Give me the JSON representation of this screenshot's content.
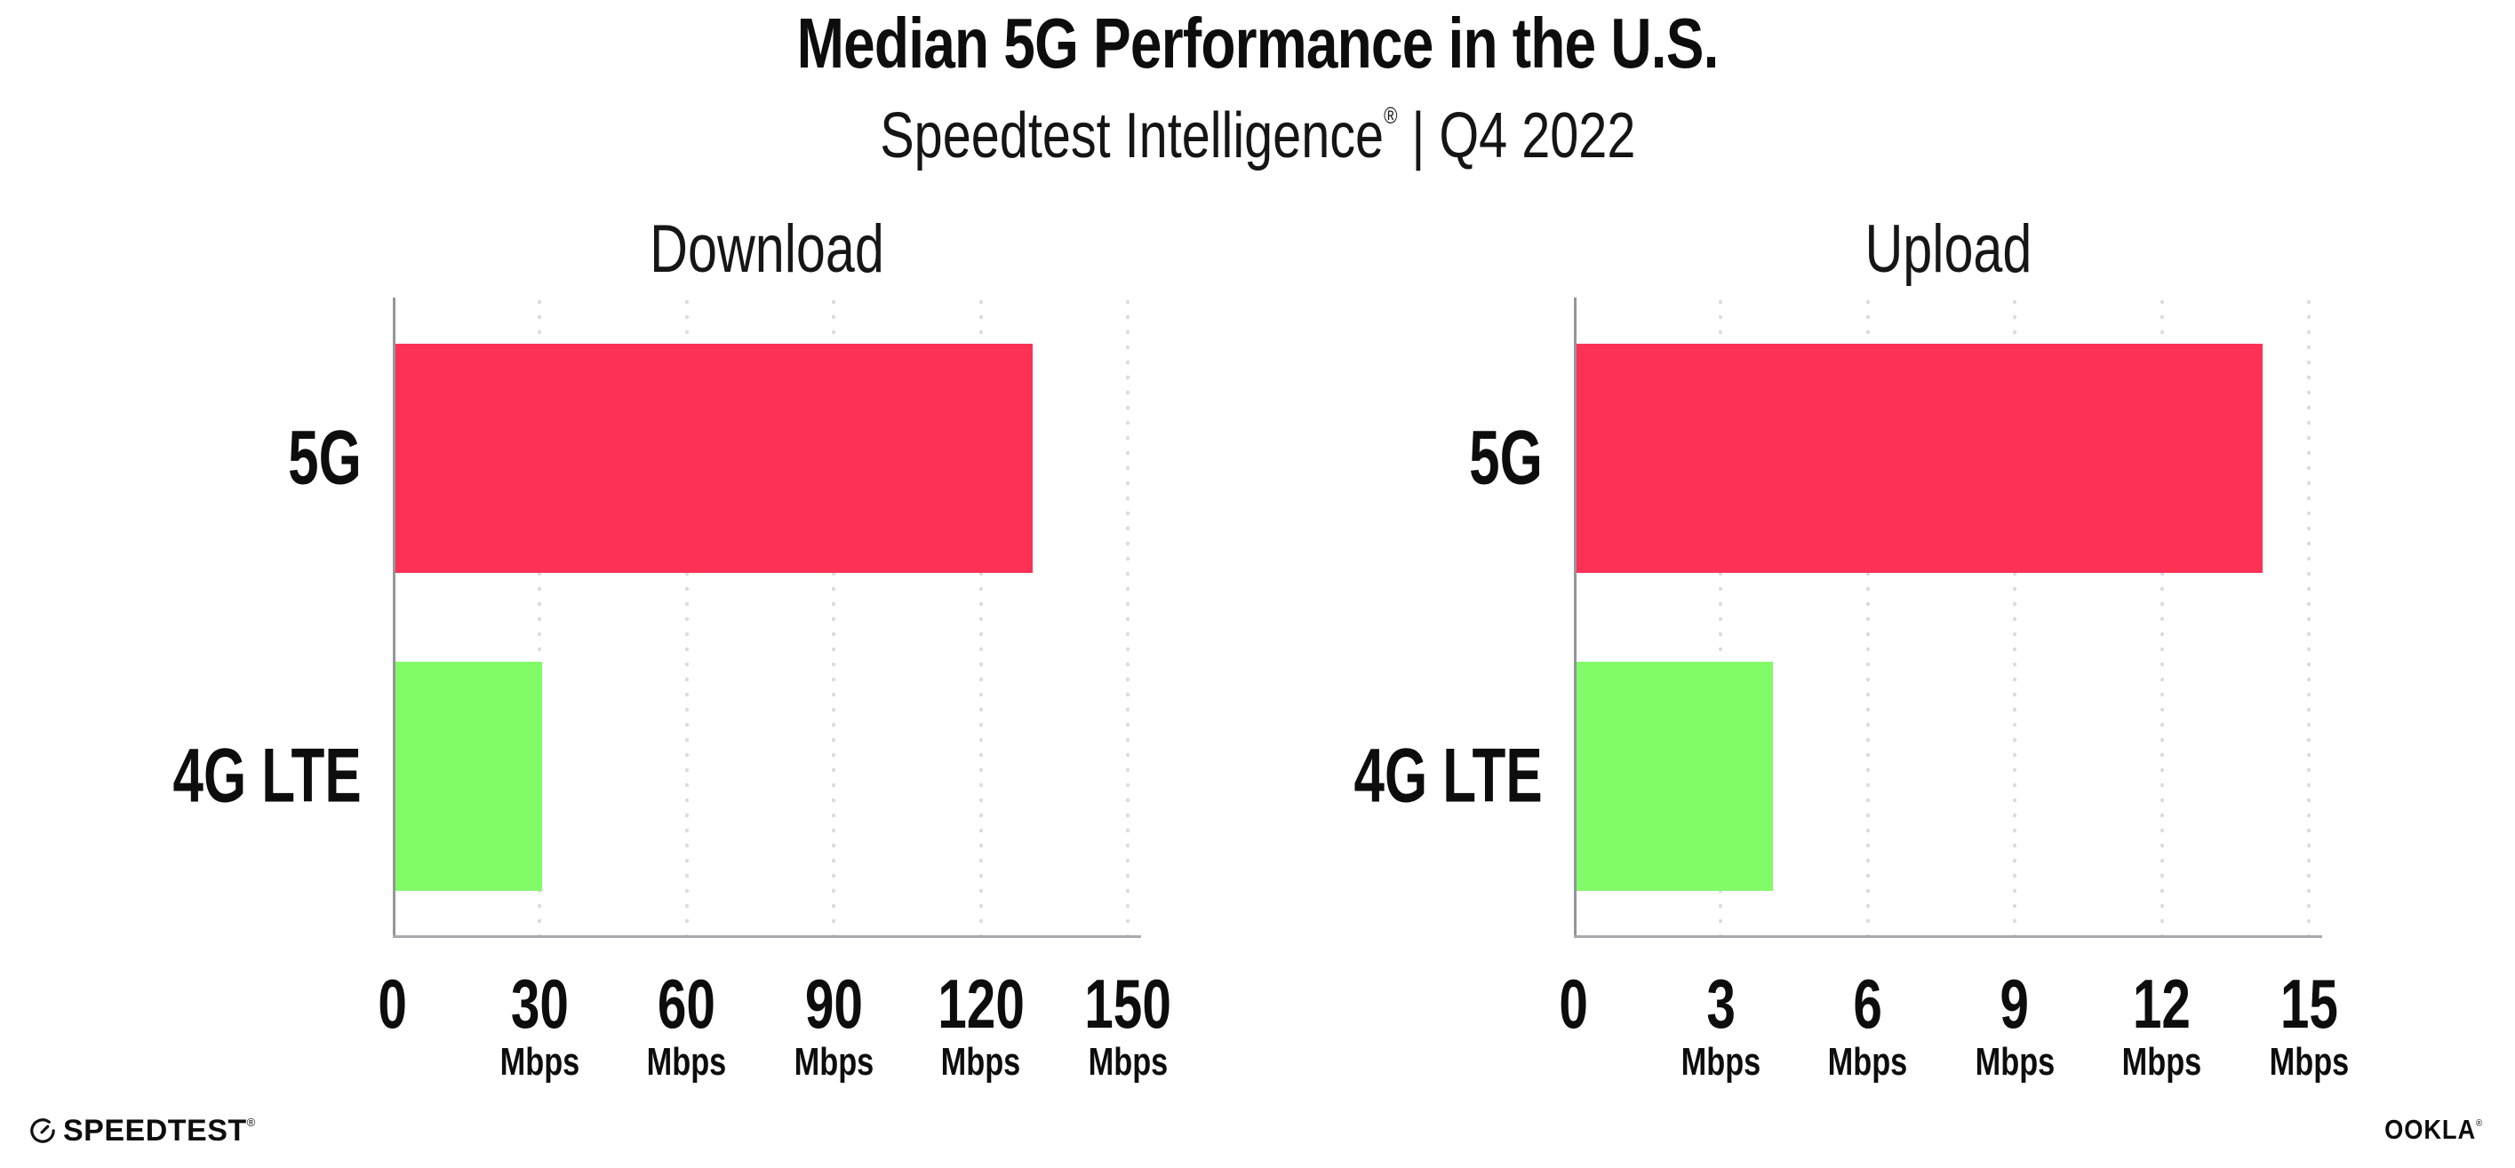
{
  "header": {
    "title": "Median 5G Performance in the U.S.",
    "subtitle_brand": "Speedtest Intelligence",
    "subtitle_reg": "®",
    "subtitle_rest": " | Q4 2022"
  },
  "colors": {
    "bar_5g": "#fd3155",
    "bar_4g_lte": "#82fb68",
    "x_axis": "#a8a8ae",
    "y_axis": "#95959c",
    "gridline": "#dcdce6",
    "text": "#0d0d0d"
  },
  "chart_data": [
    {
      "type": "bar",
      "orientation": "horizontal",
      "title": "Download",
      "categories": [
        "5G",
        "4G LTE"
      ],
      "values": [
        130,
        30
      ],
      "unit": "Mbps",
      "xlim": [
        0,
        150
      ],
      "tick_values": [
        0,
        30,
        60,
        90,
        120,
        150
      ],
      "tick_unit_label": "Mbps",
      "zero_tick_has_unit": false,
      "bar_colors": [
        "#fd3155",
        "#82fb68"
      ],
      "gridlines": "dotted-vertical",
      "legend": "none",
      "xlabel": "",
      "ylabel": ""
    },
    {
      "type": "bar",
      "orientation": "horizontal",
      "title": "Upload",
      "categories": [
        "5G",
        "4G LTE"
      ],
      "values": [
        14,
        4
      ],
      "unit": "Mbps",
      "xlim": [
        0,
        15
      ],
      "tick_values": [
        0,
        3,
        6,
        9,
        12,
        15
      ],
      "tick_unit_label": "Mbps",
      "zero_tick_has_unit": false,
      "bar_colors": [
        "#fd3155",
        "#82fb68"
      ],
      "gridlines": "dotted-vertical",
      "legend": "none",
      "xlabel": "",
      "ylabel": ""
    }
  ],
  "footer": {
    "speedtest_label": "SPEEDTEST",
    "speedtest_reg": "®",
    "ookla_label": "OOKLA",
    "ookla_reg": "®"
  }
}
